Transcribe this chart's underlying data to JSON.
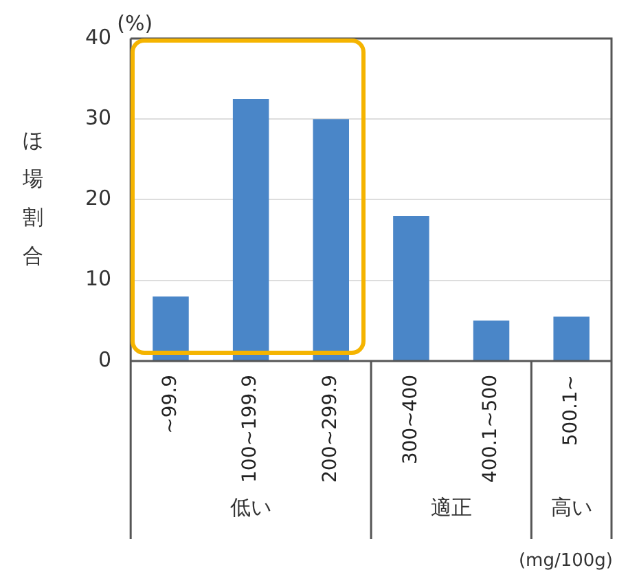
{
  "chart_data": {
    "type": "bar",
    "ylabel": "ほ場割合",
    "xlabel": "(mg/100g)",
    "categories": [
      "~99.9",
      "100~199.9",
      "200~299.9",
      "300~400",
      "400.1~500",
      "500.1~"
    ],
    "values": [
      8,
      32.5,
      30,
      18,
      5,
      5.5
    ],
    "color": "#4a86c8",
    "ylim": [
      0,
      40
    ],
    "yticks": [
      0,
      10,
      20,
      30,
      40
    ],
    "grid": "y",
    "annotations": [
      "(%)",
      "低い",
      "適正",
      "高い"
    ]
  }
}
